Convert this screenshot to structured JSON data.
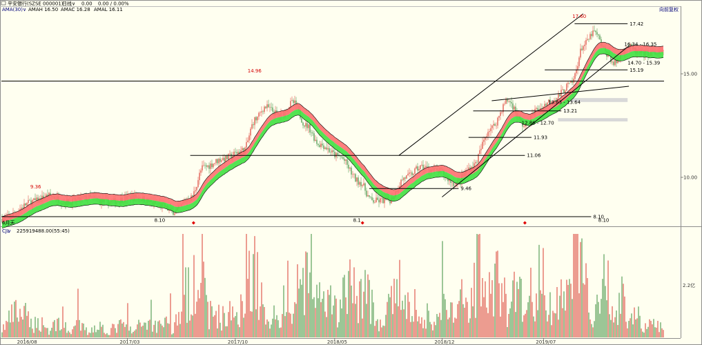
{
  "window": {
    "title": "平安银行(SZSE 000001)",
    "period": "日线",
    "price": "0.00",
    "change": "0.00 / 0.00%",
    "fq_label": "向前复权"
  },
  "indicator": {
    "name": "AMA(30)",
    "amah": "AMAH 16.50",
    "amac": "AMAC 16.28",
    "amal": "AMAL 16.11"
  },
  "volume_header": {
    "name": "CJL",
    "value": "225919488.00(55:45)"
  },
  "colors": {
    "bg": "#fffff0",
    "up": "#e05a50",
    "down": "#5aa05a",
    "band_red": "#ff7070",
    "band_green": "#40e040",
    "line": "#000000",
    "label_red": "#d40000"
  },
  "chart_data": [
    {
      "type": "candlestick",
      "title": "",
      "price_axis": {
        "ticks": [
          "15.00",
          "10.00"
        ],
        "values": [
          15.0,
          10.0
        ],
        "ylim": [
          7.7,
          17.9
        ]
      },
      "x_axis": {
        "ticks": [
          "2016/08",
          "2017/03",
          "2017/10",
          "2018/05",
          "2018/12",
          "2019/07"
        ],
        "tick_positions": [
          0.035,
          0.19,
          0.353,
          0.503,
          0.665,
          0.818
        ]
      },
      "series_keypoints": [
        {
          "t": 0.0,
          "p": 8.0
        },
        {
          "t": 0.05,
          "p": 8.85
        },
        {
          "t": 0.07,
          "p": 9.1
        },
        {
          "t": 0.1,
          "p": 8.8
        },
        {
          "t": 0.13,
          "p": 9.0
        },
        {
          "t": 0.16,
          "p": 8.8
        },
        {
          "t": 0.2,
          "p": 9.05
        },
        {
          "t": 0.235,
          "p": 8.7
        },
        {
          "t": 0.26,
          "p": 8.35
        },
        {
          "t": 0.285,
          "p": 9.0
        },
        {
          "t": 0.305,
          "p": 10.5
        },
        {
          "t": 0.335,
          "p": 10.9
        },
        {
          "t": 0.365,
          "p": 11.3
        },
        {
          "t": 0.383,
          "p": 12.8
        },
        {
          "t": 0.398,
          "p": 13.4
        },
        {
          "t": 0.42,
          "p": 13.0
        },
        {
          "t": 0.44,
          "p": 13.6
        },
        {
          "t": 0.46,
          "p": 12.5
        },
        {
          "t": 0.48,
          "p": 11.6
        },
        {
          "t": 0.51,
          "p": 11.0
        },
        {
          "t": 0.54,
          "p": 9.8
        },
        {
          "t": 0.56,
          "p": 8.85
        },
        {
          "t": 0.585,
          "p": 8.9
        },
        {
          "t": 0.61,
          "p": 10.0
        },
        {
          "t": 0.635,
          "p": 10.5
        },
        {
          "t": 0.66,
          "p": 10.3
        },
        {
          "t": 0.685,
          "p": 9.7
        },
        {
          "t": 0.71,
          "p": 10.5
        },
        {
          "t": 0.74,
          "p": 12.4
        },
        {
          "t": 0.765,
          "p": 13.7
        },
        {
          "t": 0.79,
          "p": 12.5
        },
        {
          "t": 0.81,
          "p": 13.3
        },
        {
          "t": 0.835,
          "p": 13.8
        },
        {
          "t": 0.86,
          "p": 14.5
        },
        {
          "t": 0.88,
          "p": 16.4
        },
        {
          "t": 0.895,
          "p": 17.0
        },
        {
          "t": 0.915,
          "p": 16.0
        },
        {
          "t": 0.925,
          "p": 15.5
        },
        {
          "t": 0.945,
          "p": 16.3
        },
        {
          "t": 0.965,
          "p": 16.0
        }
      ],
      "annotations": {
        "peak_labels": [
          {
            "text": "9.36",
            "t": 0.052,
            "p": 9.36
          },
          {
            "text": "14.96",
            "t": 0.38,
            "p": 14.96
          },
          {
            "text": "17.60",
            "t": 0.87,
            "p": 17.6
          }
        ],
        "trough_labels": [
          {
            "text": "8.10",
            "t": 0.235,
            "p": 8.05
          },
          {
            "text": "8.1",
            "t": 0.535,
            "p": 8.05
          },
          {
            "text": "8.10",
            "t": 0.905,
            "p": 8.05
          }
        ],
        "hlines": [
          {
            "p": 14.65,
            "t0": 0.0,
            "t1": 1.0,
            "label": ""
          },
          {
            "p": 8.1,
            "t0": 0.0,
            "t1": 0.89,
            "label": "8.10"
          },
          {
            "p": 11.06,
            "t0": 0.285,
            "t1": 0.79,
            "label": "11.06"
          },
          {
            "p": 9.46,
            "t0": 0.555,
            "t1": 0.69,
            "label": "9.46"
          },
          {
            "p": 11.93,
            "t0": 0.705,
            "t1": 0.8,
            "label": "11.93"
          },
          {
            "p": 13.21,
            "t0": 0.712,
            "t1": 0.845,
            "label": "13.21"
          },
          {
            "p": 15.19,
            "t0": 0.82,
            "t1": 0.945,
            "label": "15.19"
          },
          {
            "p": 17.42,
            "t0": 0.865,
            "t1": 0.945,
            "label": "17.42"
          }
        ],
        "range_labels": [
          {
            "text": "16.34 - 16.35",
            "t": 0.94,
            "p": 16.35
          },
          {
            "text": "14.70 - 15.39",
            "t": 0.945,
            "p": 15.45
          },
          {
            "text": "13.83 - 13.64",
            "t": 0.825,
            "p": 13.55
          },
          {
            "text": "12.86 - 12.70",
            "t": 0.785,
            "p": 12.55
          }
        ],
        "gray_zones": [
          {
            "p0": 13.64,
            "p1": 13.83,
            "t0": 0.845,
            "t1": 0.945
          },
          {
            "p0": 12.7,
            "p1": 12.86,
            "t0": 0.84,
            "t1": 0.945
          }
        ],
        "trend_lines": [
          {
            "t0": 0.6,
            "p0": 11.06,
            "t1": 0.878,
            "p1": 17.9
          },
          {
            "t0": 0.665,
            "p0": 9.05,
            "t1": 0.947,
            "p1": 16.35
          },
          {
            "t0": 0.74,
            "p0": 13.7,
            "t1": 0.947,
            "p1": 14.4
          }
        ],
        "markers": [
          {
            "t": 0.29
          },
          {
            "t": 0.545
          },
          {
            "t": 0.79
          }
        ],
        "corner_label": "6月天"
      }
    },
    {
      "type": "bar",
      "title": "",
      "y_axis": {
        "ticks": [
          "2.2亿"
        ]
      },
      "note": "daily volume (CJL)"
    }
  ]
}
